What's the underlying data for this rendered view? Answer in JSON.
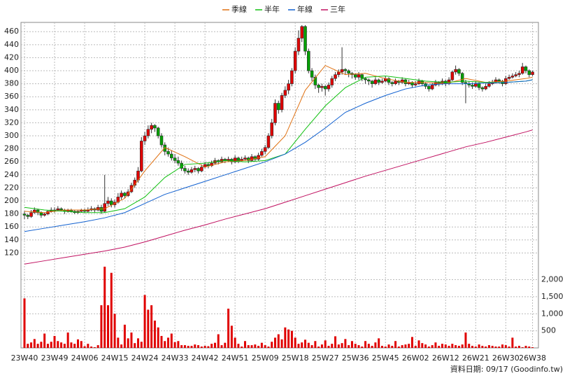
{
  "chart_data": {
    "type": "candlestick",
    "source": "資料日期: 09/17 (Goodinfo.tw)",
    "categories": [
      "23W40",
      null,
      null,
      null,
      null,
      null,
      null,
      null,
      null,
      "23W49",
      null,
      null,
      null,
      null,
      null,
      null,
      null,
      null,
      "24W06",
      null,
      null,
      null,
      null,
      null,
      null,
      null,
      null,
      "24W15",
      null,
      null,
      null,
      null,
      null,
      null,
      null,
      null,
      "24W24",
      null,
      null,
      null,
      null,
      null,
      null,
      null,
      null,
      "24W33",
      null,
      null,
      null,
      null,
      null,
      null,
      null,
      null,
      "24W42",
      null,
      null,
      null,
      null,
      null,
      null,
      null,
      null,
      "24W51",
      null,
      null,
      null,
      null,
      null,
      null,
      null,
      null,
      "25W09",
      null,
      null,
      null,
      null,
      null,
      null,
      null,
      null,
      "25W18",
      null,
      null,
      null,
      null,
      null,
      null,
      null,
      null,
      "25W27",
      null,
      null,
      null,
      null,
      null,
      null,
      null,
      null,
      "25W36",
      null,
      null,
      null,
      null,
      null,
      null,
      null,
      null,
      "25W45",
      null,
      null,
      null,
      null,
      null,
      null,
      null,
      null,
      "26W02",
      null,
      null,
      null,
      null,
      null,
      null,
      null,
      null,
      "26W12",
      null,
      null,
      null,
      null,
      null,
      null,
      null,
      null,
      "26W21",
      null,
      null,
      null,
      null,
      null,
      null,
      null,
      null,
      "26W30",
      null,
      null,
      null,
      null,
      null,
      null,
      null,
      "26W38"
    ],
    "up_color": "#e00000",
    "down_color": "#00a000",
    "candles": [
      [
        180,
        184,
        172,
        178
      ],
      [
        178,
        180,
        172,
        176
      ],
      [
        176,
        186,
        174,
        182
      ],
      [
        182,
        190,
        180,
        186
      ],
      [
        186,
        188,
        178,
        182
      ],
      [
        182,
        184,
        174,
        178
      ],
      [
        178,
        182,
        176,
        180
      ],
      [
        180,
        186,
        178,
        184
      ],
      [
        184,
        190,
        182,
        186
      ],
      [
        186,
        190,
        182,
        186
      ],
      [
        186,
        192,
        184,
        188
      ],
      [
        188,
        190,
        184,
        186
      ],
      [
        186,
        188,
        180,
        184
      ],
      [
        184,
        188,
        182,
        186
      ],
      [
        186,
        188,
        182,
        184
      ],
      [
        184,
        186,
        180,
        182
      ],
      [
        182,
        186,
        180,
        184
      ],
      [
        184,
        188,
        182,
        186
      ],
      [
        186,
        188,
        182,
        184
      ],
      [
        184,
        190,
        182,
        186
      ],
      [
        186,
        192,
        184,
        188
      ],
      [
        188,
        190,
        182,
        186
      ],
      [
        186,
        194,
        184,
        190
      ],
      [
        190,
        194,
        180,
        184
      ],
      [
        184,
        240,
        182,
        196
      ],
      [
        196,
        206,
        192,
        200
      ],
      [
        200,
        204,
        190,
        194
      ],
      [
        194,
        202,
        190,
        198
      ],
      [
        198,
        212,
        196,
        206
      ],
      [
        206,
        216,
        202,
        212
      ],
      [
        212,
        214,
        204,
        208
      ],
      [
        208,
        218,
        206,
        214
      ],
      [
        214,
        228,
        212,
        224
      ],
      [
        224,
        236,
        220,
        232
      ],
      [
        232,
        252,
        228,
        246
      ],
      [
        246,
        298,
        244,
        292
      ],
      [
        292,
        306,
        286,
        300
      ],
      [
        300,
        316,
        296,
        310
      ],
      [
        310,
        320,
        304,
        316
      ],
      [
        316,
        318,
        306,
        312
      ],
      [
        312,
        314,
        296,
        300
      ],
      [
        300,
        304,
        282,
        286
      ],
      [
        286,
        290,
        270,
        276
      ],
      [
        276,
        282,
        268,
        272
      ],
      [
        272,
        278,
        262,
        266
      ],
      [
        266,
        272,
        258,
        262
      ],
      [
        262,
        268,
        254,
        258
      ],
      [
        258,
        262,
        246,
        250
      ],
      [
        250,
        254,
        242,
        246
      ],
      [
        246,
        250,
        240,
        244
      ],
      [
        244,
        252,
        242,
        248
      ],
      [
        248,
        254,
        244,
        250
      ],
      [
        250,
        252,
        242,
        246
      ],
      [
        246,
        256,
        244,
        252
      ],
      [
        252,
        260,
        250,
        256
      ],
      [
        256,
        258,
        250,
        254
      ],
      [
        254,
        262,
        252,
        258
      ],
      [
        258,
        266,
        256,
        262
      ],
      [
        262,
        264,
        256,
        260
      ],
      [
        260,
        268,
        258,
        264
      ],
      [
        264,
        266,
        258,
        262
      ],
      [
        262,
        268,
        260,
        264
      ],
      [
        264,
        266,
        256,
        260
      ],
      [
        260,
        270,
        258,
        266
      ],
      [
        266,
        268,
        258,
        262
      ],
      [
        262,
        268,
        260,
        264
      ],
      [
        264,
        270,
        262,
        266
      ],
      [
        266,
        268,
        258,
        262
      ],
      [
        262,
        272,
        260,
        268
      ],
      [
        268,
        270,
        260,
        264
      ],
      [
        264,
        274,
        262,
        270
      ],
      [
        270,
        280,
        268,
        276
      ],
      [
        276,
        286,
        272,
        282
      ],
      [
        282,
        304,
        280,
        300
      ],
      [
        300,
        326,
        296,
        320
      ],
      [
        320,
        356,
        316,
        350
      ],
      [
        350,
        354,
        334,
        340
      ],
      [
        340,
        366,
        336,
        362
      ],
      [
        362,
        376,
        358,
        370
      ],
      [
        370,
        386,
        364,
        380
      ],
      [
        380,
        404,
        376,
        400
      ],
      [
        400,
        436,
        396,
        430
      ],
      [
        430,
        462,
        424,
        450
      ],
      [
        450,
        470,
        444,
        468
      ],
      [
        468,
        470,
        424,
        430
      ],
      [
        430,
        434,
        396,
        400
      ],
      [
        400,
        404,
        384,
        390
      ],
      [
        390,
        394,
        372,
        378
      ],
      [
        378,
        380,
        366,
        374
      ],
      [
        374,
        380,
        368,
        376
      ],
      [
        376,
        378,
        362,
        372
      ],
      [
        372,
        382,
        368,
        378
      ],
      [
        378,
        392,
        374,
        388
      ],
      [
        388,
        398,
        384,
        394
      ],
      [
        394,
        402,
        390,
        398
      ],
      [
        398,
        436,
        394,
        402
      ],
      [
        402,
        404,
        394,
        400
      ],
      [
        400,
        402,
        390,
        396
      ],
      [
        396,
        398,
        388,
        394
      ],
      [
        394,
        396,
        386,
        390
      ],
      [
        390,
        398,
        386,
        394
      ],
      [
        394,
        396,
        384,
        388
      ],
      [
        388,
        390,
        380,
        386
      ],
      [
        386,
        388,
        378,
        384
      ],
      [
        384,
        386,
        374,
        380
      ],
      [
        380,
        390,
        378,
        386
      ],
      [
        386,
        388,
        378,
        382
      ],
      [
        382,
        388,
        380,
        384
      ],
      [
        384,
        392,
        382,
        388
      ],
      [
        388,
        390,
        378,
        382
      ],
      [
        382,
        384,
        376,
        380
      ],
      [
        380,
        388,
        378,
        384
      ],
      [
        384,
        386,
        378,
        382
      ],
      [
        382,
        390,
        380,
        386
      ],
      [
        386,
        388,
        376,
        380
      ],
      [
        380,
        386,
        378,
        382
      ],
      [
        382,
        384,
        374,
        378
      ],
      [
        378,
        384,
        376,
        380
      ],
      [
        380,
        388,
        378,
        384
      ],
      [
        384,
        386,
        376,
        380
      ],
      [
        380,
        382,
        372,
        376
      ],
      [
        376,
        378,
        368,
        372
      ],
      [
        372,
        382,
        370,
        378
      ],
      [
        378,
        386,
        376,
        382
      ],
      [
        382,
        384,
        376,
        380
      ],
      [
        380,
        388,
        378,
        384
      ],
      [
        384,
        386,
        376,
        380
      ],
      [
        380,
        390,
        378,
        386
      ],
      [
        386,
        400,
        384,
        398
      ],
      [
        398,
        408,
        394,
        402
      ],
      [
        402,
        404,
        392,
        396
      ],
      [
        396,
        398,
        378,
        382
      ],
      [
        382,
        386,
        350,
        380
      ],
      [
        380,
        384,
        374,
        378
      ],
      [
        378,
        382,
        372,
        376
      ],
      [
        376,
        384,
        374,
        380
      ],
      [
        380,
        382,
        370,
        374
      ],
      [
        374,
        376,
        368,
        372
      ],
      [
        372,
        380,
        370,
        376
      ],
      [
        376,
        384,
        374,
        380
      ],
      [
        380,
        386,
        378,
        382
      ],
      [
        382,
        390,
        380,
        386
      ],
      [
        386,
        388,
        380,
        384
      ],
      [
        384,
        386,
        376,
        380
      ],
      [
        380,
        392,
        378,
        388
      ],
      [
        388,
        394,
        386,
        390
      ],
      [
        390,
        396,
        388,
        392
      ],
      [
        392,
        398,
        390,
        394
      ],
      [
        394,
        400,
        390,
        396
      ],
      [
        396,
        412,
        394,
        406
      ],
      [
        406,
        408,
        396,
        400
      ],
      [
        400,
        402,
        390,
        394
      ],
      [
        394,
        400,
        392,
        398
      ]
    ],
    "ylim": [
      100,
      471
    ],
    "yticks": [
      120,
      140,
      160,
      180,
      200,
      220,
      240,
      260,
      280,
      300,
      320,
      340,
      360,
      380,
      400,
      420,
      440,
      460
    ],
    "grid": true,
    "series": [
      {
        "name": "季線",
        "color": "#e07010",
        "x": [
          0,
          6,
          12,
          18,
          24,
          30,
          36,
          42,
          48,
          54,
          60,
          66,
          72,
          78,
          84,
          90,
          96,
          102,
          108,
          114,
          120,
          126,
          132,
          138,
          144,
          150,
          152
        ],
        "values": [
          184,
          182,
          186,
          186,
          188,
          204,
          246,
          282,
          268,
          252,
          260,
          262,
          268,
          300,
          370,
          408,
          394,
          396,
          388,
          382,
          382,
          380,
          388,
          382,
          384,
          388,
          390
        ]
      },
      {
        "name": "半年",
        "color": "#10c010",
        "x": [
          0,
          6,
          12,
          18,
          24,
          30,
          36,
          42,
          48,
          54,
          60,
          66,
          72,
          78,
          84,
          90,
          96,
          102,
          108,
          114,
          120,
          126,
          132,
          138,
          144,
          150,
          152
        ],
        "values": [
          190,
          186,
          184,
          182,
          182,
          188,
          206,
          236,
          256,
          258,
          262,
          260,
          262,
          272,
          310,
          346,
          374,
          390,
          392,
          388,
          384,
          382,
          384,
          382,
          382,
          384,
          386
        ]
      },
      {
        "name": "年線",
        "color": "#1060d0",
        "x": [
          0,
          6,
          12,
          18,
          24,
          30,
          36,
          42,
          48,
          54,
          60,
          66,
          72,
          78,
          84,
          90,
          96,
          102,
          108,
          114,
          120,
          126,
          132,
          138,
          144,
          150,
          152
        ],
        "values": [
          153,
          158,
          163,
          168,
          174,
          182,
          196,
          210,
          220,
          230,
          240,
          250,
          260,
          272,
          290,
          312,
          336,
          350,
          362,
          372,
          378,
          380,
          380,
          381,
          382,
          384,
          386
        ]
      },
      {
        "name": "三年",
        "color": "#c01060",
        "x": [
          0,
          6,
          12,
          18,
          24,
          30,
          36,
          42,
          48,
          54,
          60,
          66,
          72,
          78,
          84,
          90,
          96,
          102,
          108,
          114,
          120,
          126,
          132,
          138,
          144,
          150,
          152
        ],
        "values": [
          103,
          108,
          113,
          118,
          123,
          129,
          137,
          146,
          155,
          163,
          172,
          180,
          188,
          198,
          208,
          218,
          228,
          238,
          247,
          256,
          265,
          274,
          283,
          290,
          298,
          306,
          309
        ]
      }
    ],
    "volume": {
      "color": "#e00000",
      "ylim": [
        0,
        2400
      ],
      "yticks": [
        500,
        {
          "value": 1000,
          "label": "1,000"
        },
        {
          "value": 1500,
          "label": "1,500"
        },
        {
          "value": 2000,
          "label": "2,000"
        }
      ],
      "values": [
        1450,
        120,
        160,
        260,
        120,
        180,
        420,
        120,
        180,
        350,
        200,
        160,
        120,
        450,
        160,
        120,
        250,
        200,
        50,
        120,
        40,
        20,
        80,
        1250,
        2380,
        1250,
        2200,
        1000,
        300,
        100,
        680,
        280,
        450,
        140,
        280,
        180,
        1550,
        1120,
        1250,
        800,
        600,
        350,
        200,
        300,
        420,
        170,
        200,
        80,
        80,
        60,
        60,
        100,
        80,
        40,
        60,
        50,
        120,
        150,
        400,
        80,
        150,
        1150,
        650,
        300,
        120,
        40,
        200,
        80,
        80,
        100,
        60,
        150,
        80,
        40,
        180,
        300,
        400,
        250,
        600,
        540,
        500,
        300,
        120,
        160,
        240,
        150,
        80,
        200,
        40,
        100,
        220,
        60,
        120,
        340,
        100,
        140,
        260,
        80,
        200,
        120,
        80,
        40,
        200,
        120,
        60,
        160,
        280,
        60,
        40,
        100,
        60,
        200,
        40,
        80,
        100,
        120,
        320,
        60,
        220,
        140,
        100,
        40,
        80,
        160,
        60,
        120,
        100,
        60,
        120,
        80,
        60,
        100,
        450,
        120,
        60,
        40,
        100,
        60,
        40,
        80,
        60,
        40,
        40,
        100,
        80,
        40,
        300,
        40,
        60,
        20,
        60,
        40,
        20
      ]
    }
  }
}
